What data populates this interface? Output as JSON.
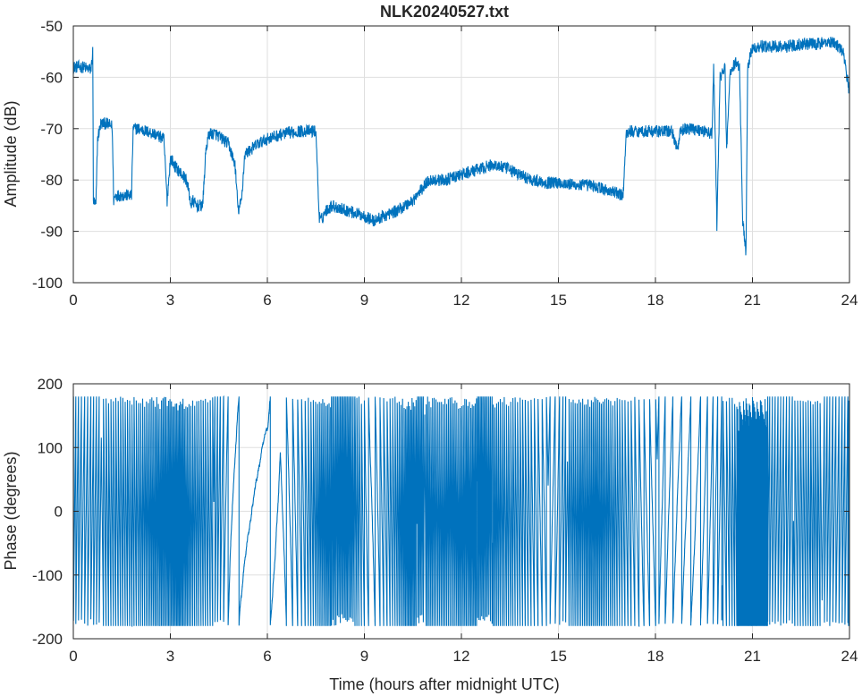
{
  "chart_data": [
    {
      "type": "line",
      "title": "NLK20240527.txt",
      "xlabel": "",
      "ylabel": "Amplitude (dB)",
      "xlim": [
        0,
        24
      ],
      "ylim": [
        -100,
        -50
      ],
      "x_ticks": [
        0,
        3,
        6,
        9,
        12,
        15,
        18,
        21,
        24
      ],
      "y_ticks": [
        -100,
        -90,
        -80,
        -70,
        -60,
        -50
      ],
      "x_tick_labels": [
        "0",
        "3",
        "6",
        "9",
        "12",
        "15",
        "18",
        "21",
        "24"
      ],
      "y_tick_labels": [
        "-100",
        "-90",
        "-80",
        "-70",
        "-60",
        "-50"
      ],
      "grid": true,
      "color": "#0072BD",
      "series": [
        {
          "x": [
            0,
            0.3,
            0.55,
            0.6,
            0.62,
            0.7,
            0.75,
            0.85,
            1.0,
            1.2,
            1.25,
            1.3,
            1.5,
            1.8,
            1.85,
            1.9,
            2.0,
            2.5,
            2.8,
            2.9,
            2.95,
            3.0,
            3.05,
            3.1,
            3.5,
            3.65,
            3.7,
            3.8,
            4.0,
            4.1,
            4.2,
            4.4,
            4.8,
            5.0,
            5.1,
            5.2,
            5.3,
            5.5,
            5.7,
            6.0,
            6.5,
            7.0,
            7.5,
            7.6,
            7.65,
            7.8,
            8.0,
            8.5,
            9.0,
            9.3,
            9.6,
            10.0,
            10.5,
            11.0,
            11.5,
            12.0,
            12.5,
            13.0,
            13.5,
            13.8,
            14.2,
            14.6,
            15.0,
            15.5,
            16.0,
            16.5,
            17.0,
            17.1,
            17.2,
            17.5,
            18.0,
            18.5,
            18.7,
            18.75,
            18.9,
            19.2,
            19.5,
            19.75,
            19.8,
            19.85,
            19.9,
            20.0,
            20.15,
            20.2,
            20.3,
            20.5,
            20.6,
            20.7,
            20.8,
            20.85,
            20.95,
            21.1,
            21.5,
            22.0,
            22.5,
            23.0,
            23.5,
            23.8,
            24.0
          ],
          "y": [
            -58,
            -58,
            -58.5,
            -55,
            -84,
            -85,
            -72,
            -69,
            -69,
            -69.5,
            -84,
            -83,
            -83,
            -83,
            -70,
            -70,
            -70,
            -71,
            -72,
            -84,
            -80,
            -76,
            -76,
            -77,
            -80,
            -85,
            -84,
            -85,
            -85,
            -74,
            -71,
            -71,
            -73,
            -77,
            -86,
            -84,
            -75,
            -74,
            -73,
            -72,
            -71,
            -70.5,
            -70.5,
            -87,
            -88,
            -86,
            -85,
            -86,
            -87,
            -88,
            -87,
            -86,
            -84,
            -80,
            -80,
            -79,
            -78,
            -77,
            -78,
            -79,
            -80,
            -80.5,
            -80.5,
            -81,
            -81,
            -82,
            -83,
            -71,
            -70.5,
            -70.5,
            -70.5,
            -70.5,
            -74,
            -71,
            -70,
            -70,
            -70.5,
            -71,
            -58,
            -72,
            -89,
            -60,
            -58,
            -75,
            -59,
            -57,
            -58,
            -88,
            -94,
            -58,
            -55,
            -54,
            -54,
            -54,
            -53.5,
            -53.5,
            -53,
            -55,
            -63
          ]
        }
      ]
    },
    {
      "type": "line",
      "title": "",
      "xlabel": "Time (hours after midnight UTC)",
      "ylabel": "Phase (degrees)",
      "xlim": [
        0,
        24
      ],
      "ylim": [
        -200,
        200
      ],
      "x_ticks": [
        0,
        3,
        6,
        9,
        12,
        15,
        18,
        21,
        24
      ],
      "y_ticks": [
        -200,
        -100,
        0,
        100,
        200
      ],
      "x_tick_labels": [
        "0",
        "3",
        "6",
        "9",
        "12",
        "15",
        "18",
        "21",
        "24"
      ],
      "y_tick_labels": [
        "-200",
        "-100",
        "0",
        "100",
        "200"
      ],
      "grid": true,
      "color": "#0072BD",
      "wrap_limits": [
        -180,
        180
      ],
      "wrap_rate_per_hour": [
        [
          0,
          14
        ],
        [
          0.3,
          10
        ],
        [
          1,
          13
        ],
        [
          2,
          15
        ],
        [
          3.0,
          24
        ],
        [
          3.3,
          26
        ],
        [
          3.7,
          16
        ],
        [
          4.5,
          12
        ],
        [
          4.9,
          3
        ],
        [
          5.4,
          1
        ],
        [
          5.9,
          0.6
        ],
        [
          6.3,
          2.5
        ],
        [
          6.8,
          6
        ],
        [
          7.2,
          10
        ],
        [
          7.7,
          20
        ],
        [
          8.5,
          24
        ],
        [
          9.2,
          4
        ],
        [
          9.9,
          13
        ],
        [
          10.4,
          26
        ],
        [
          11.2,
          18
        ],
        [
          12.0,
          20
        ],
        [
          12.6,
          24
        ],
        [
          13.3,
          16
        ],
        [
          14.0,
          12
        ],
        [
          14.4,
          8
        ],
        [
          14.9,
          6
        ],
        [
          15.4,
          16
        ],
        [
          16.2,
          20
        ],
        [
          17.0,
          12
        ],
        [
          17.6,
          6
        ],
        [
          18.2,
          5
        ],
        [
          18.6,
          4
        ],
        [
          19.2,
          3
        ],
        [
          19.6,
          5
        ],
        [
          20.1,
          9
        ],
        [
          20.5,
          14
        ],
        [
          20.6,
          90
        ],
        [
          21.4,
          90
        ],
        [
          21.5,
          12
        ],
        [
          22.2,
          11
        ],
        [
          23.0,
          14
        ],
        [
          23.6,
          10
        ],
        [
          24.0,
          12
        ]
      ],
      "series": []
    }
  ]
}
